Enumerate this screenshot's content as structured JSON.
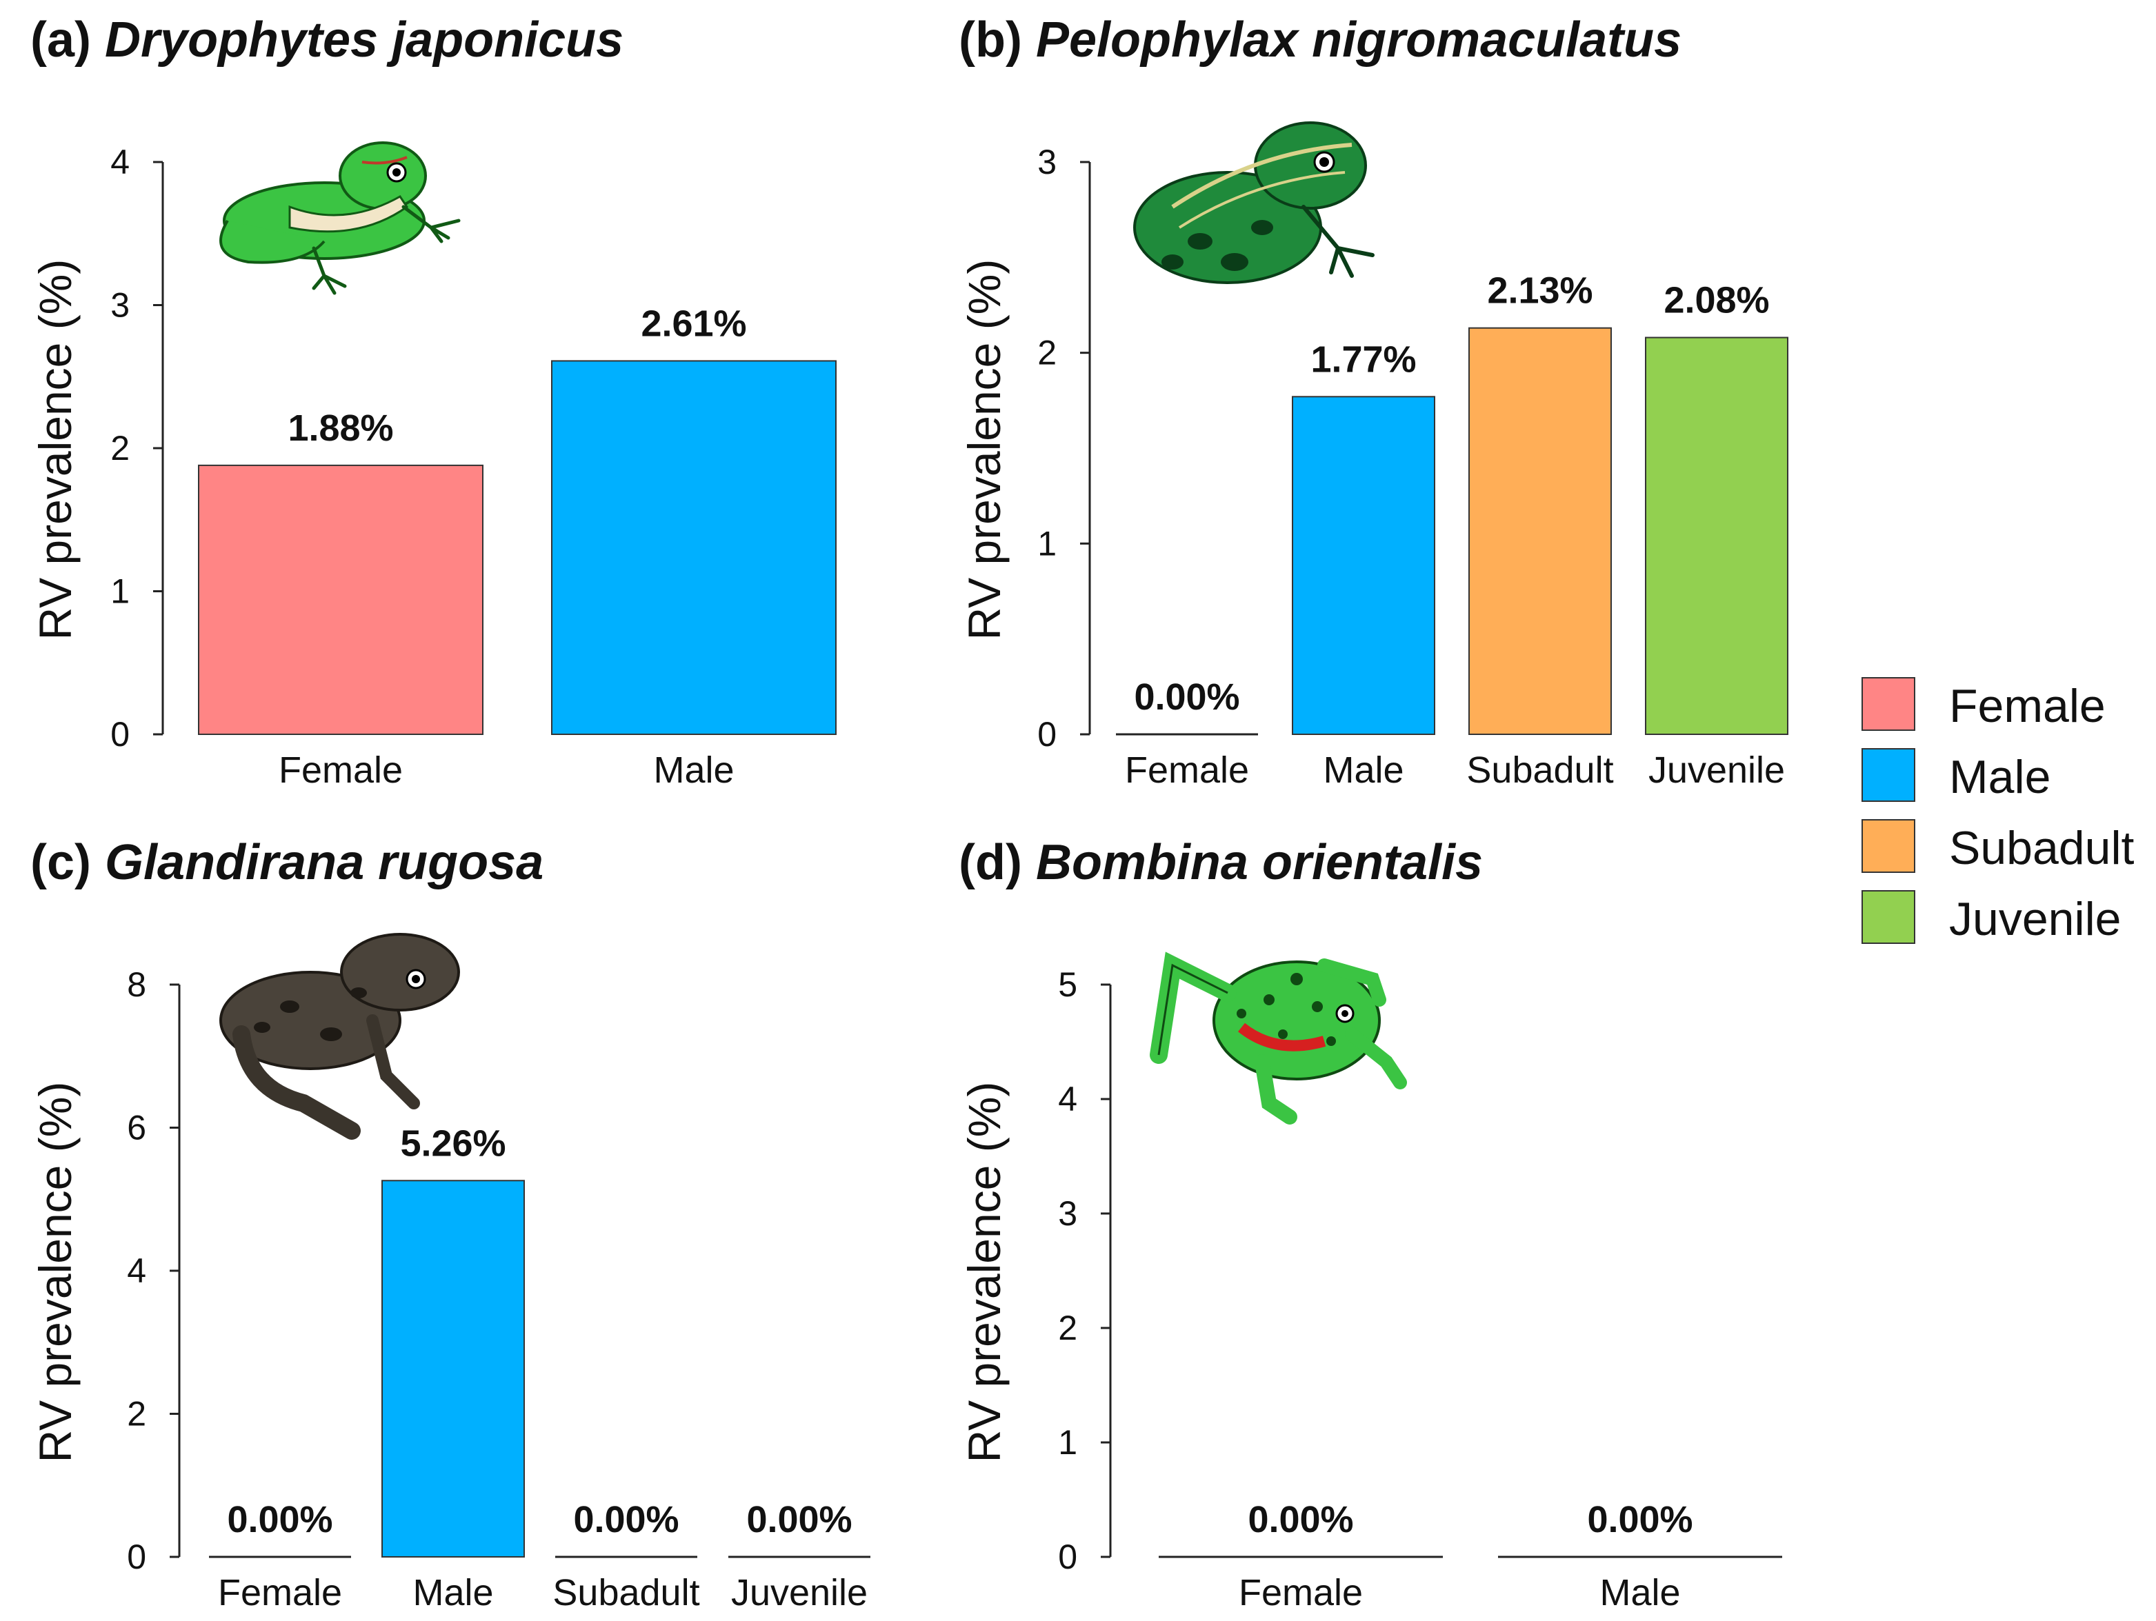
{
  "figure": {
    "legend": [
      {
        "label": "Female",
        "color": "#FF8585"
      },
      {
        "label": "Male",
        "color": "#00B0FF"
      },
      {
        "label": "Subadult",
        "color": "#FFAE57"
      },
      {
        "label": "Juvenile",
        "color": "#92D050"
      }
    ]
  },
  "chart_data": [
    {
      "type": "bar",
      "panel": "(a)",
      "species": "Dryophytes japonicus",
      "ylabel": "RV prevalence (%)",
      "ylim": [
        0,
        4
      ],
      "yticks": [
        0,
        1,
        2,
        3,
        4
      ],
      "categories": [
        "Female",
        "Male"
      ],
      "values": [
        1.88,
        2.61
      ],
      "labels": [
        "1.88%",
        "2.61%"
      ],
      "colors": [
        "#FF8585",
        "#00B0FF"
      ],
      "icon": "tree-frog-icon"
    },
    {
      "type": "bar",
      "panel": "(b)",
      "species": "Pelophylax nigromaculatus",
      "ylabel": "RV prevalence (%)",
      "ylim": [
        0,
        3
      ],
      "yticks": [
        0,
        1,
        2,
        3
      ],
      "categories": [
        "Female",
        "Male",
        "Subadult",
        "Juvenile"
      ],
      "values": [
        0.0,
        1.77,
        2.13,
        2.08
      ],
      "labels": [
        "0.00%",
        "1.77%",
        "2.13%",
        "2.08%"
      ],
      "colors": [
        "#FF8585",
        "#00B0FF",
        "#FFAE57",
        "#92D050"
      ],
      "icon": "pond-frog-icon"
    },
    {
      "type": "bar",
      "panel": "(c)",
      "species": "Glandirana rugosa",
      "ylabel": "RV prevalence (%)",
      "ylim": [
        0,
        8
      ],
      "yticks": [
        0,
        2,
        4,
        6,
        8
      ],
      "categories": [
        "Female",
        "Male",
        "Subadult",
        "Juvenile"
      ],
      "values": [
        0.0,
        5.26,
        0.0,
        0.0
      ],
      "labels": [
        "0.00%",
        "5.26%",
        "0.00%",
        "0.00%"
      ],
      "colors": [
        "#FF8585",
        "#00B0FF",
        "#FFAE57",
        "#92D050"
      ],
      "icon": "wrinkled-frog-icon"
    },
    {
      "type": "bar",
      "panel": "(d)",
      "species": "Bombina orientalis",
      "ylabel": "RV prevalence (%)",
      "ylim": [
        0,
        5
      ],
      "yticks": [
        0,
        1,
        2,
        3,
        4,
        5
      ],
      "categories": [
        "Female",
        "Male"
      ],
      "values": [
        0.0,
        0.0
      ],
      "labels": [
        "0.00%",
        "0.00%"
      ],
      "colors": [
        "#FF8585",
        "#00B0FF"
      ],
      "icon": "fire-bellied-toad-icon"
    }
  ]
}
